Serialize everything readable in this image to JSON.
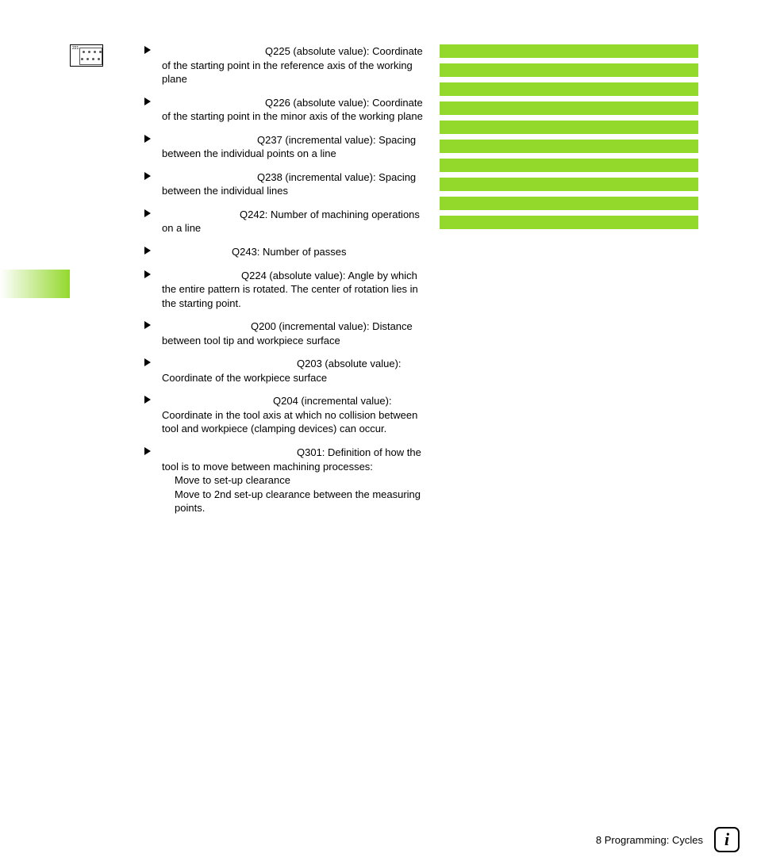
{
  "icon": {
    "label": "221"
  },
  "params": [
    {
      "lead_spaces": 130,
      "text": "Q225 (absolute value): Coordinate of the starting point in the reference axis of the working plane"
    },
    {
      "lead_spaces": 130,
      "text": "Q226 (absolute value): Coordinate of the starting point in the minor axis of the working plane"
    },
    {
      "lead_spaces": 120,
      "text": "Q237 (incremental value): Spacing between the individual points on a line"
    },
    {
      "lead_spaces": 120,
      "text": "Q238 (incremental value): Spacing between the individual lines"
    },
    {
      "lead_spaces": 98,
      "text": "Q242: Number of machining operations on a line"
    },
    {
      "lead_spaces": 88,
      "text": "Q243: Number of passes"
    },
    {
      "lead_spaces": 100,
      "text": "Q224 (absolute value): Angle by which the entire pattern is rotated. The center of rotation lies in the starting point."
    },
    {
      "lead_spaces": 112,
      "text": "Q200 (incremental value): Distance between tool tip and workpiece surface"
    },
    {
      "lead_spaces": 170,
      "text": "Q203 (absolute value): Coordinate of the workpiece surface"
    },
    {
      "lead_spaces": 140,
      "text": "Q204 (incremental value): Coordinate in the tool axis at which no collision between tool and workpiece (clamping devices) can occur."
    },
    {
      "lead_spaces": 170,
      "text": "Q301: Definition of how the tool is to move between machining processes:",
      "subs": [
        "Move to set-up clearance",
        "Move to 2nd set-up clearance between the measuring points."
      ]
    }
  ],
  "green_bars": 10,
  "footer": {
    "text": "8 Programming: Cycles"
  },
  "colors": {
    "green": "#93d92b",
    "text": "#000000",
    "bg": "#ffffff"
  }
}
